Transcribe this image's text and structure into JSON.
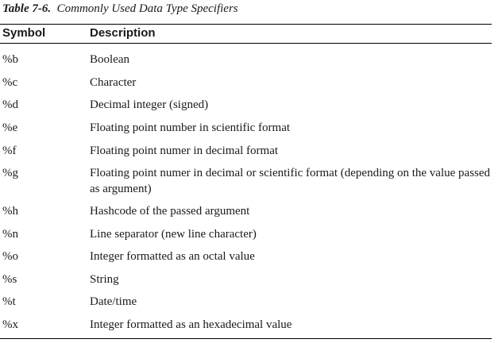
{
  "caption": {
    "number": "Table 7-6.",
    "title": "Commonly Used Data Type Specifiers"
  },
  "headers": {
    "symbol": "Symbol",
    "description": "Description"
  },
  "rows": [
    {
      "symbol": "%b",
      "description": "Boolean"
    },
    {
      "symbol": "%c",
      "description": "Character"
    },
    {
      "symbol": "%d",
      "description": "Decimal integer (signed)"
    },
    {
      "symbol": "%e",
      "description": "Floating point number in scientific format"
    },
    {
      "symbol": "%f",
      "description": "Floating point numer in decimal format"
    },
    {
      "symbol": "%g",
      "description": "Floating point numer in decimal or scientific format (depending on the value passed as argument)"
    },
    {
      "symbol": "%h",
      "description": "Hashcode of the passed argument"
    },
    {
      "symbol": "%n",
      "description": "Line separator (new line character)"
    },
    {
      "symbol": "%o",
      "description": "Integer formatted as an octal value"
    },
    {
      "symbol": "%s",
      "description": "String"
    },
    {
      "symbol": "%t",
      "description": "Date/time"
    },
    {
      "symbol": "%x",
      "description": "Integer formatted as an hexadecimal value"
    }
  ]
}
